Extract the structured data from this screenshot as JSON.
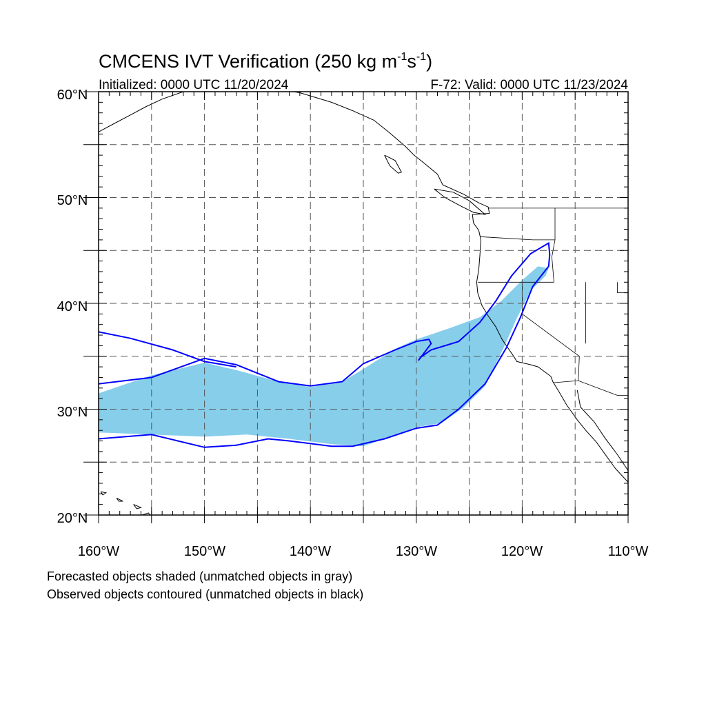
{
  "title": {
    "main": "CMCENS IVT Verification (250 kg m",
    "sup1": "-1",
    "mid": "s",
    "sup2": "-1",
    "end": ")"
  },
  "initialized": "Initialized: 0000 UTC 11/20/2024",
  "valid": "F-72: Valid: 0000 UTC 11/23/2024",
  "notes": {
    "line1": "Forecasted objects shaded (unmatched objects in gray)",
    "line2": "Observed objects contoured (unmatched objects in black)"
  },
  "map": {
    "lon_range": [
      -160,
      -110
    ],
    "lat_range": [
      20,
      60
    ],
    "lat_ticks": [
      "20°N",
      "30°N",
      "40°N",
      "50°N",
      "60°N"
    ],
    "lon_ticks": [
      "160°W",
      "150°W",
      "140°W",
      "130°W",
      "120°W",
      "110°W"
    ],
    "grid": true,
    "grid_interval_deg": 5
  },
  "colors": {
    "forecast_fill": "#87ceeb",
    "observed_contour": "#0000ff",
    "coastline": "#000000",
    "grid": "#555555"
  },
  "forecast_object": {
    "north_edge": [
      [
        -160,
        31.5
      ],
      [
        -155,
        33.2
      ],
      [
        -150,
        34.4
      ],
      [
        -147,
        33.7
      ],
      [
        -143,
        32.6
      ],
      [
        -140,
        32.1
      ],
      [
        -137,
        32.6
      ],
      [
        -135,
        33.8
      ],
      [
        -132,
        35.7
      ],
      [
        -130,
        36.6
      ],
      [
        -127,
        37.6
      ],
      [
        -124,
        38.7
      ],
      [
        -122,
        40.2
      ],
      [
        -120,
        42.2
      ],
      [
        -118.5,
        43.5
      ],
      [
        -117.5,
        43.3
      ]
    ],
    "south_edge": [
      [
        -117.8,
        42.6
      ],
      [
        -119.2,
        41.2
      ],
      [
        -120.5,
        38.6
      ],
      [
        -121.8,
        35.7
      ],
      [
        -123.5,
        32.2
      ],
      [
        -125.6,
        30.1
      ],
      [
        -127.6,
        28.7
      ],
      [
        -130,
        28.3
      ],
      [
        -133,
        27.2
      ],
      [
        -135,
        26.5
      ],
      [
        -138,
        26.7
      ],
      [
        -142,
        27.2
      ],
      [
        -146,
        27.6
      ],
      [
        -150,
        27.4
      ],
      [
        -155,
        27.6
      ],
      [
        -160,
        27.8
      ]
    ]
  },
  "observed_object": {
    "north_edge": [
      [
        -160,
        32.4
      ],
      [
        -155,
        33.0
      ],
      [
        -150,
        34.8
      ],
      [
        -147,
        34.2
      ],
      [
        -143,
        32.6
      ],
      [
        -140,
        32.2
      ],
      [
        -137,
        32.6
      ],
      [
        -135,
        34.3
      ],
      [
        -132,
        35.6
      ],
      [
        -130,
        36.4
      ],
      [
        -128.8,
        36.6
      ],
      [
        -128.6,
        36.2
      ],
      [
        -129.8,
        34.6
      ],
      [
        -129.6,
        34.9
      ],
      [
        -128.6,
        35.6
      ],
      [
        -126,
        36.4
      ],
      [
        -124,
        38.2
      ],
      [
        -122.5,
        40.2
      ],
      [
        -121,
        42.6
      ],
      [
        -119.2,
        44.7
      ],
      [
        -117.5,
        45.7
      ],
      [
        -117.4,
        44.6
      ],
      [
        -117.5,
        43.5
      ]
    ],
    "south_edge": [
      [
        -117.5,
        43.5
      ],
      [
        -119.0,
        41.6
      ],
      [
        -120.2,
        38.6
      ],
      [
        -121.5,
        35.8
      ],
      [
        -123.5,
        32.4
      ],
      [
        -126,
        30.0
      ],
      [
        -128,
        28.5
      ],
      [
        -130,
        28.2
      ],
      [
        -133,
        27.2
      ],
      [
        -136,
        26.5
      ],
      [
        -138,
        26.5
      ],
      [
        -142,
        27.0
      ],
      [
        -144,
        27.2
      ],
      [
        -147,
        26.6
      ],
      [
        -150,
        26.4
      ],
      [
        -155,
        27.6
      ],
      [
        -160,
        27.2
      ]
    ],
    "west_object": [
      [
        -160,
        37.3
      ],
      [
        -157,
        36.7
      ],
      [
        -153,
        35.6
      ],
      [
        -150,
        34.5
      ],
      [
        -147,
        34.0
      ]
    ]
  },
  "coastlines": {
    "north_america_west": [
      [
        -148,
        60
      ],
      [
        -146,
        60.7
      ],
      [
        -141,
        59.9
      ],
      [
        -138,
        59
      ],
      [
        -136,
        58.2
      ],
      [
        -134,
        57.3
      ],
      [
        -132.5,
        56.1
      ],
      [
        -131,
        54.8
      ],
      [
        -130.2,
        54
      ],
      [
        -129.2,
        53.2
      ],
      [
        -128,
        52.2
      ],
      [
        -127.5,
        51.2
      ],
      [
        -125.5,
        50.3
      ],
      [
        -124.1,
        49.5
      ],
      [
        -123.2,
        49.1
      ],
      [
        -123.1,
        48.5
      ],
      [
        -124.7,
        48.4
      ],
      [
        -124.6,
        47.6
      ],
      [
        -124.1,
        46.9
      ],
      [
        -123.9,
        46
      ],
      [
        -124,
        44.5
      ],
      [
        -124.1,
        43.2
      ],
      [
        -124.3,
        42
      ],
      [
        -124.2,
        41
      ],
      [
        -123.8,
        39.8
      ],
      [
        -123.2,
        38.8
      ],
      [
        -122.5,
        37.8
      ],
      [
        -121.9,
        36.6
      ],
      [
        -121.5,
        36
      ],
      [
        -120.8,
        35
      ],
      [
        -120.5,
        34.5
      ],
      [
        -119.2,
        34.2
      ],
      [
        -118.5,
        34
      ],
      [
        -117.3,
        33.1
      ],
      [
        -117.1,
        32.6
      ],
      [
        -116.5,
        31.6
      ],
      [
        -115.8,
        30.4
      ],
      [
        -114.8,
        29
      ],
      [
        -114.0,
        28
      ],
      [
        -113.0,
        26.9
      ],
      [
        -112.0,
        25.5
      ],
      [
        -111.2,
        24.4
      ],
      [
        -110,
        23.1
      ]
    ],
    "gulf_of_california": [
      [
        -114.8,
        31.8
      ],
      [
        -114.5,
        30.2
      ],
      [
        -113.2,
        28.8
      ],
      [
        -112.2,
        27.3
      ],
      [
        -111,
        25.7
      ],
      [
        -110,
        24.2
      ]
    ],
    "vancouver_island": [
      [
        -128.3,
        50.8
      ],
      [
        -126.5,
        50.5
      ],
      [
        -125,
        49.7
      ],
      [
        -123.5,
        48.4
      ],
      [
        -124.6,
        48.6
      ],
      [
        -125.8,
        49.2
      ],
      [
        -127.3,
        50
      ],
      [
        -128.3,
        50.8
      ]
    ],
    "haida_gwaii": [
      [
        -133,
        54
      ],
      [
        -132,
        53.5
      ],
      [
        -131.4,
        52.4
      ],
      [
        -131.7,
        52.3
      ],
      [
        -132.5,
        53
      ],
      [
        -133,
        54
      ]
    ],
    "alaska_south": [
      [
        -160,
        56.2
      ],
      [
        -158.5,
        57
      ],
      [
        -157,
        57.8
      ],
      [
        -155.5,
        58.6
      ],
      [
        -154,
        59.3
      ],
      [
        -152,
        60
      ]
    ],
    "hawaii_big": [
      [
        -155.9,
        20
      ],
      [
        -155.2,
        19.3
      ],
      [
        -154.8,
        19.6
      ],
      [
        -155.3,
        20.2
      ],
      [
        -155.9,
        20
      ]
    ],
    "hawaii_maui": [
      [
        -156.7,
        21
      ],
      [
        -156,
        20.7
      ],
      [
        -156.4,
        20.6
      ],
      [
        -156.7,
        21
      ]
    ],
    "hawaii_oahu": [
      [
        -158.3,
        21.6
      ],
      [
        -157.7,
        21.3
      ],
      [
        -158.1,
        21.3
      ],
      [
        -158.3,
        21.6
      ]
    ],
    "hawaii_kauai": [
      [
        -159.8,
        22.2
      ],
      [
        -159.3,
        22.1
      ],
      [
        -159.6,
        21.9
      ],
      [
        -159.8,
        22.2
      ]
    ]
  },
  "borders": {
    "canada_us": [
      [
        -123.2,
        49.0
      ],
      [
        -110,
        49.0
      ]
    ],
    "us_mexico": [
      [
        -117.1,
        32.5
      ],
      [
        -114.7,
        32.7
      ],
      [
        -111,
        31.3
      ],
      [
        -110,
        31.3
      ]
    ],
    "or_ca": [
      [
        -124.2,
        42.0
      ],
      [
        -120,
        42.0
      ],
      [
        -117,
        42.0
      ]
    ],
    "nv_az_line": [
      [
        -120,
        42
      ],
      [
        -120,
        39
      ],
      [
        -114.6,
        35
      ]
    ],
    "wa_or": [
      [
        -124,
        46.3
      ],
      [
        -119,
        46
      ],
      [
        -116.9,
        46
      ]
    ],
    "id_border": [
      [
        -116.9,
        49
      ],
      [
        -116.9,
        46
      ],
      [
        -117.2,
        44.4
      ],
      [
        -117,
        42
      ]
    ],
    "nv_east": [
      [
        -114,
        42
      ],
      [
        -114,
        36.2
      ]
    ],
    "ut_line": [
      [
        -111,
        42
      ],
      [
        -111,
        41
      ],
      [
        -110,
        41
      ]
    ],
    "az_line": [
      [
        -114.6,
        35
      ],
      [
        -114.7,
        32.7
      ]
    ]
  }
}
